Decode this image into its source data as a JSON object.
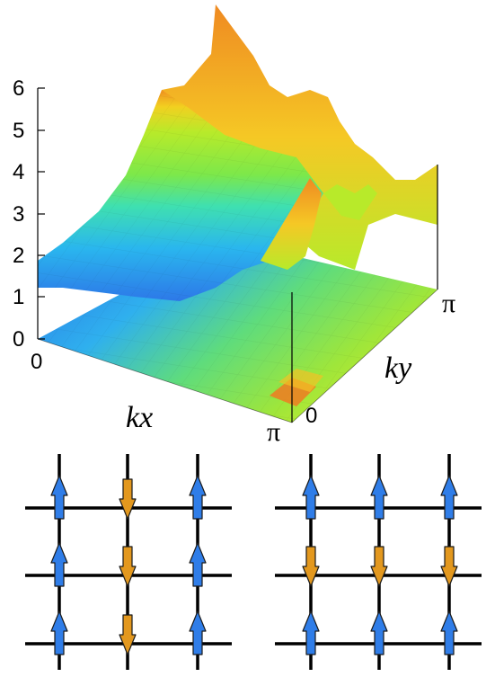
{
  "plot": {
    "z_ticks": [
      "0",
      "1",
      "2",
      "3",
      "4",
      "5",
      "6"
    ],
    "kx_label": "kx",
    "ky_label": "ky",
    "kx_start": "0",
    "kx_end": "π",
    "ky_start": "0",
    "ky_end": "π"
  },
  "lattices": {
    "left": {
      "rows": [
        [
          "up",
          "down",
          "up"
        ],
        [
          "up",
          "down",
          "up"
        ],
        [
          "up",
          "down",
          "up"
        ]
      ]
    },
    "right": {
      "rows": [
        [
          "up",
          "up",
          "up"
        ],
        [
          "down",
          "down",
          "down"
        ],
        [
          "up",
          "up",
          "up"
        ]
      ]
    }
  },
  "colors": {
    "spin_up": "#2f7de8",
    "spin_down": "#e3981e",
    "lattice_line": "#000000"
  }
}
